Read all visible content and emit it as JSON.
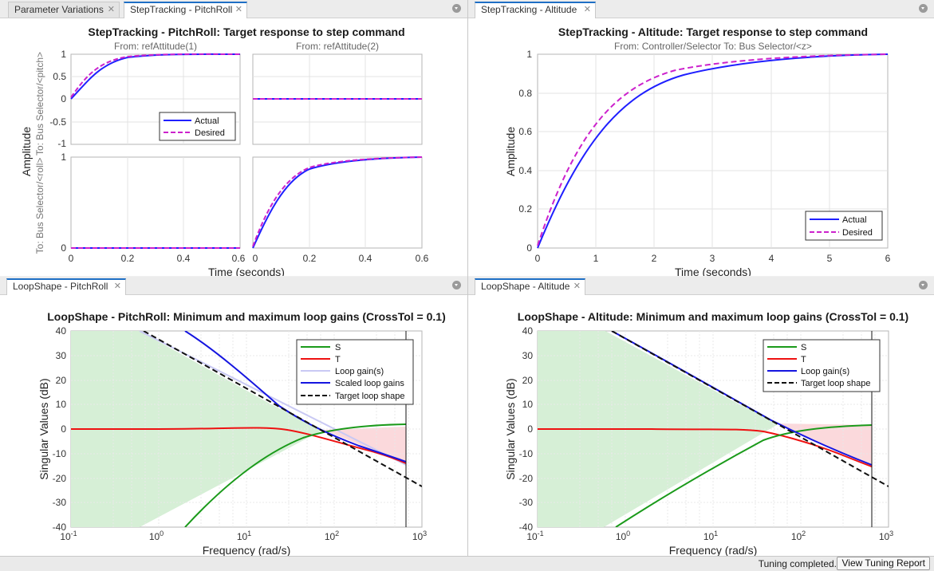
{
  "panes": {
    "top_left": {
      "tabs": [
        "Parameter Variations",
        "StepTracking - PitchRoll"
      ],
      "title": "StepTracking - PitchRoll: Target response to step command",
      "from_labels": [
        "From: refAttitude(1)",
        "From: refAttitude(2)"
      ],
      "to_labels": [
        "To: Bus Selector/<pitch>",
        "To: Bus Selector/<roll>"
      ],
      "ylabel": "Amplitude",
      "xlabel": "Time (seconds)",
      "legend": [
        "Actual",
        "Desired"
      ]
    },
    "top_right": {
      "tab": "StepTracking - Altitude",
      "title": "StepTracking - Altitude: Target response to step command",
      "subtitle": "From: Controller/Selector  To: Bus Selector/<z>",
      "ylabel": "Amplitude",
      "xlabel": "Time (seconds)",
      "legend": [
        "Actual",
        "Desired"
      ]
    },
    "bottom_left": {
      "tab": "LoopShape - PitchRoll",
      "title": "LoopShape - PitchRoll: Minimum and maximum loop gains (CrossTol = 0.1)",
      "ylabel": "Singular Values (dB)",
      "xlabel": "Frequency (rad/s)",
      "legend": [
        "S",
        "T",
        "Loop gain(s)",
        "Scaled loop gains",
        "Target loop shape"
      ]
    },
    "bottom_right": {
      "tab": "LoopShape - Altitude",
      "title": "LoopShape - Altitude: Minimum and maximum loop gains (CrossTol = 0.1)",
      "ylabel": "Singular Values (dB)",
      "xlabel": "Frequency (rad/s)",
      "legend": [
        "S",
        "T",
        "Loop gain(s)",
        "Target loop shape"
      ]
    }
  },
  "ticks": {
    "pitch_y": [
      "1",
      "0.5",
      "0",
      "-0.5",
      "-1"
    ],
    "roll_y": [
      "1",
      "0"
    ],
    "step_x": [
      "0",
      "0.2",
      "0.4",
      "0.6"
    ],
    "alt_y": [
      "1",
      "0.8",
      "0.6",
      "0.4",
      "0.2",
      "0"
    ],
    "alt_x": [
      "0",
      "1",
      "2",
      "3",
      "4",
      "5",
      "6"
    ],
    "loop_y": [
      "40",
      "30",
      "20",
      "10",
      "0",
      "-10",
      "-20",
      "-30",
      "-40"
    ],
    "loop_x_exp": [
      "-1",
      "0",
      "1",
      "2",
      "3"
    ]
  },
  "colors": {
    "actual": "#1f1fff",
    "desired": "#cc22cc",
    "S": "#1a9a1a",
    "T": "#ee1111",
    "loop_gain": "#c9c9f4",
    "scaled": "#1515e0",
    "target": "#111111",
    "green_fill": "#d6efd6",
    "red_fill": "#fbd9dc"
  },
  "status": {
    "text": "Tuning completed.",
    "button": "View Tuning Report"
  }
}
